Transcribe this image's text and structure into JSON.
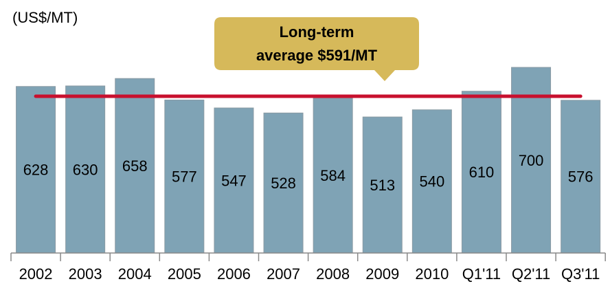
{
  "chart_data": {
    "type": "bar",
    "unit_label": "(US$/MT)",
    "annotation": [
      "Long-term",
      "average $591/MT"
    ],
    "categories": [
      "2002",
      "2003",
      "2004",
      "2005",
      "2006",
      "2007",
      "2008",
      "2009",
      "2010",
      "Q1'11",
      "Q2'11",
      "Q3'11"
    ],
    "values": [
      628,
      630,
      658,
      577,
      547,
      528,
      584,
      513,
      540,
      610,
      700,
      576
    ],
    "color": "#7fa3b5",
    "average": 591,
    "average_color": "#c8102e",
    "annotation_color": "#d6b95a",
    "ylim": [
      0,
      700
    ]
  }
}
